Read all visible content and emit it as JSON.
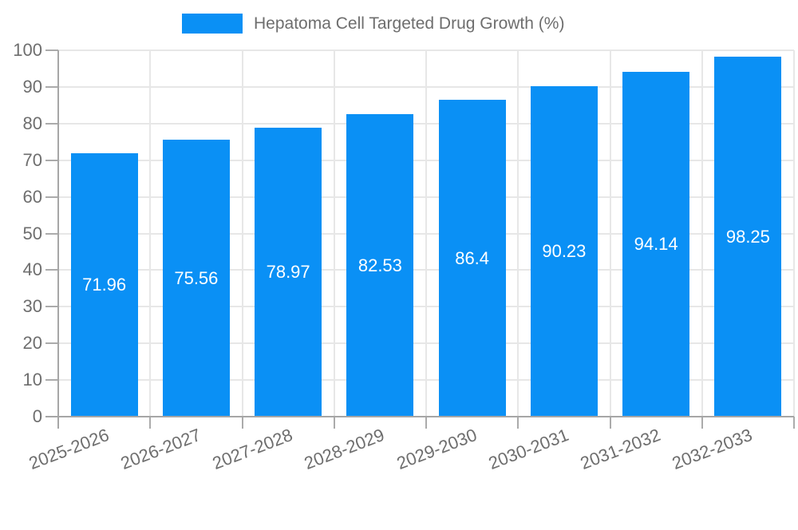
{
  "chart_data": {
    "type": "bar",
    "title": "Hepatoma Cell Targeted Drug Growth (%)",
    "legend_label": "Hepatoma Cell Targeted Drug Growth (%)",
    "legend_position": "top-center",
    "categories": [
      "2025-2026",
      "2026-2027",
      "2027-2028",
      "2028-2029",
      "2029-2030",
      "2030-2031",
      "2031-2032",
      "2032-2033"
    ],
    "values": [
      71.96,
      75.56,
      78.97,
      82.53,
      86.4,
      90.23,
      94.14,
      98.25
    ],
    "value_labels": [
      "71.96",
      "75.56",
      "78.97",
      "82.53",
      "86.4",
      "90.23",
      "94.14",
      "98.25"
    ],
    "xlabel": "",
    "ylabel": "",
    "ylim": [
      0,
      100
    ],
    "yticks": [
      0,
      10,
      20,
      30,
      40,
      50,
      60,
      70,
      80,
      90,
      100
    ],
    "grid": "horizontal lines every 10 units and vertical lines at category boundaries",
    "x_label_rotation_deg": -21,
    "colors": {
      "bar": "#0a90f5",
      "bar_value_text": "#ffffff",
      "grid": "#e7e7e7",
      "axis": "#a6a6a6",
      "tick": "#ababab",
      "axis_text": "#6e6e6e",
      "background": "#ffffff"
    }
  }
}
